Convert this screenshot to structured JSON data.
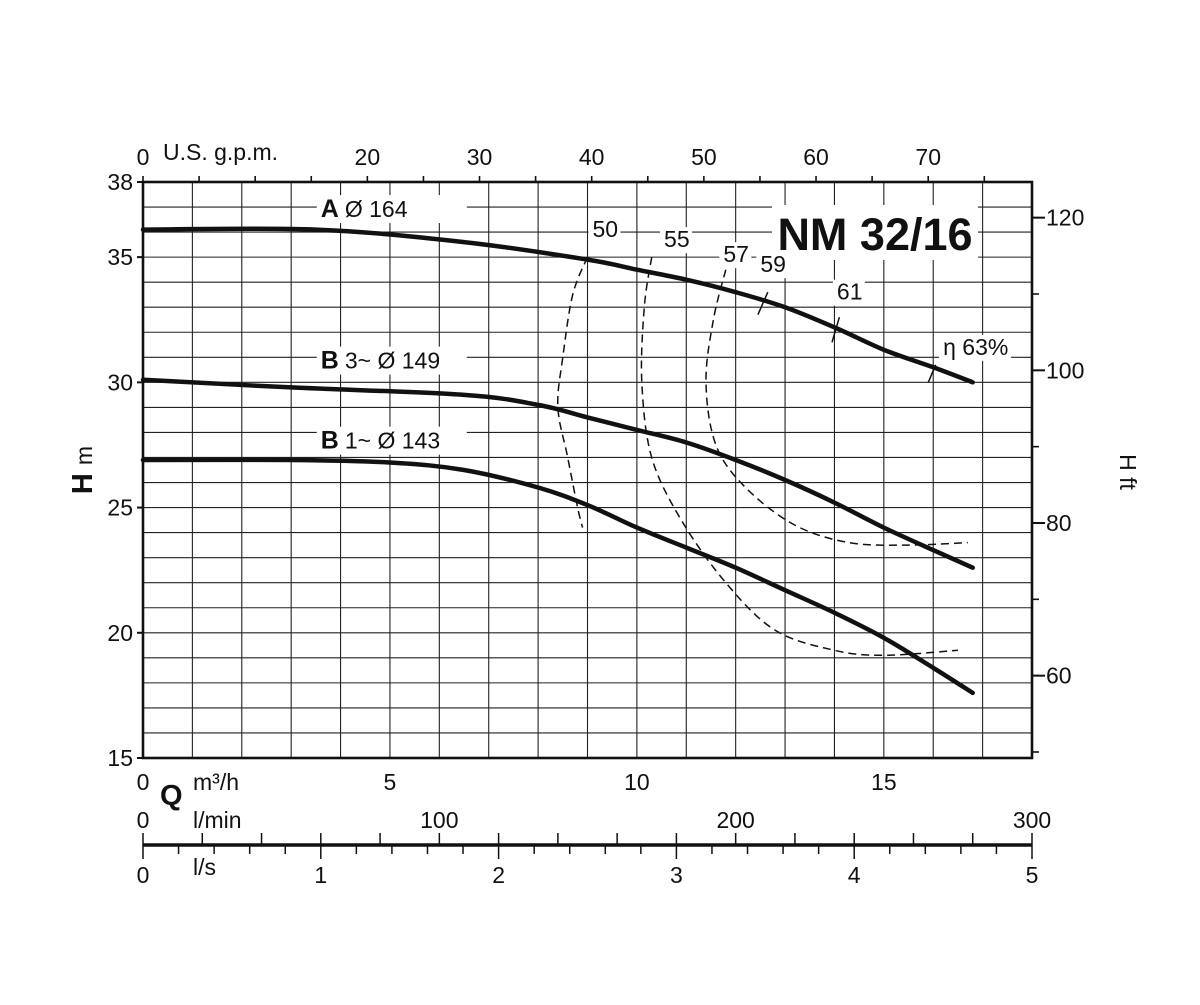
{
  "chart_data": {
    "type": "line",
    "title": "NM 32/16",
    "x_axis": {
      "symbol": "Q",
      "unit": "m³/h",
      "min": 0,
      "max": 18,
      "ticks": [
        0,
        5,
        10,
        15
      ],
      "labels": [
        "0",
        "5",
        "10",
        "15"
      ]
    },
    "y_axis": {
      "symbol": "H",
      "unit": "m",
      "min": 15,
      "max": 38,
      "ticks": [
        15,
        20,
        25,
        30,
        35,
        38
      ],
      "labels": [
        "15",
        "20",
        "25",
        "30",
        "35",
        "38"
      ]
    },
    "y_axis_right": {
      "label": "H ft",
      "ticks": [
        60,
        80,
        100,
        120
      ],
      "labels": [
        "60",
        "80",
        "100",
        "120"
      ]
    },
    "x_axis_top": {
      "unit": "U.S. g.p.m.",
      "ticks": [
        0,
        20,
        30,
        40,
        50,
        60,
        70
      ],
      "labels": [
        "0",
        "20",
        "30",
        "40",
        "50",
        "60",
        "70"
      ]
    },
    "x_axis_lmin": {
      "unit": "l/min",
      "ticks": [
        0,
        100,
        200,
        300
      ],
      "labels": [
        "0",
        "100",
        "200",
        "300"
      ]
    },
    "x_axis_ls": {
      "unit": "l/s",
      "ticks": [
        0,
        1,
        2,
        3,
        4,
        5
      ],
      "labels": [
        "0",
        "1",
        "2",
        "3",
        "4",
        "5"
      ]
    },
    "grid": true,
    "series": [
      {
        "name": "A",
        "label": "Ø 164",
        "points": [
          [
            0,
            36.1
          ],
          [
            3.5,
            36.1
          ],
          [
            6.5,
            35.6
          ],
          [
            9,
            34.9
          ],
          [
            10,
            34.5
          ],
          [
            11,
            34.1
          ],
          [
            12,
            33.6
          ],
          [
            13,
            33.0
          ],
          [
            14,
            32.2
          ],
          [
            15,
            31.3
          ],
          [
            16,
            30.6
          ],
          [
            16.8,
            30.0
          ]
        ]
      },
      {
        "name": "B",
        "label": "3~ Ø 149",
        "points": [
          [
            0,
            30.1
          ],
          [
            3,
            29.8
          ],
          [
            6.5,
            29.5
          ],
          [
            8,
            29.1
          ],
          [
            9,
            28.6
          ],
          [
            10,
            28.1
          ],
          [
            11,
            27.6
          ],
          [
            12,
            26.9
          ],
          [
            13,
            26.1
          ],
          [
            14,
            25.2
          ],
          [
            15,
            24.2
          ],
          [
            16,
            23.3
          ],
          [
            16.8,
            22.6
          ]
        ]
      },
      {
        "name": "B",
        "label": "1~ Ø 143",
        "points": [
          [
            0,
            26.9
          ],
          [
            3,
            26.9
          ],
          [
            5,
            26.8
          ],
          [
            6.5,
            26.5
          ],
          [
            8,
            25.8
          ],
          [
            9,
            25.1
          ],
          [
            10,
            24.2
          ],
          [
            11,
            23.4
          ],
          [
            12,
            22.6
          ],
          [
            13,
            21.7
          ],
          [
            14,
            20.8
          ],
          [
            15,
            19.8
          ],
          [
            16,
            18.6
          ],
          [
            16.8,
            17.6
          ]
        ]
      }
    ],
    "efficiency_curves": [
      {
        "label": "50",
        "points": [
          [
            9.0,
            35.0
          ],
          [
            8.7,
            33.5
          ],
          [
            8.5,
            31.0
          ],
          [
            8.4,
            29.0
          ],
          [
            8.6,
            27.0
          ],
          [
            8.8,
            25.0
          ],
          [
            8.9,
            24.2
          ]
        ]
      },
      {
        "label": "55",
        "points": [
          [
            10.3,
            35.0
          ],
          [
            10.15,
            33.0
          ],
          [
            10.1,
            30.0
          ],
          [
            10.3,
            27.0
          ],
          [
            10.9,
            24.5
          ],
          [
            11.8,
            22.0
          ],
          [
            12.8,
            20.1
          ],
          [
            14.0,
            19.3
          ],
          [
            15.0,
            19.1
          ],
          [
            16.5,
            19.3
          ]
        ]
      },
      {
        "label": "57",
        "points": [
          [
            11.8,
            34.5
          ],
          [
            11.55,
            32.5
          ],
          [
            11.4,
            30.0
          ],
          [
            11.6,
            27.5
          ],
          [
            12.2,
            25.8
          ],
          [
            13.2,
            24.3
          ],
          [
            14.3,
            23.6
          ],
          [
            15.5,
            23.5
          ],
          [
            16.7,
            23.6
          ]
        ]
      },
      {
        "label": "59",
        "points": [
          [
            12.65,
            33.6
          ],
          [
            12.45,
            32.7
          ]
        ]
      },
      {
        "label": "61",
        "points": [
          [
            14.1,
            32.6
          ],
          [
            13.95,
            31.6
          ]
        ]
      },
      {
        "label": "63%",
        "prefix": "η",
        "points": [
          [
            16.05,
            30.7
          ],
          [
            15.9,
            30.0
          ]
        ]
      }
    ]
  }
}
